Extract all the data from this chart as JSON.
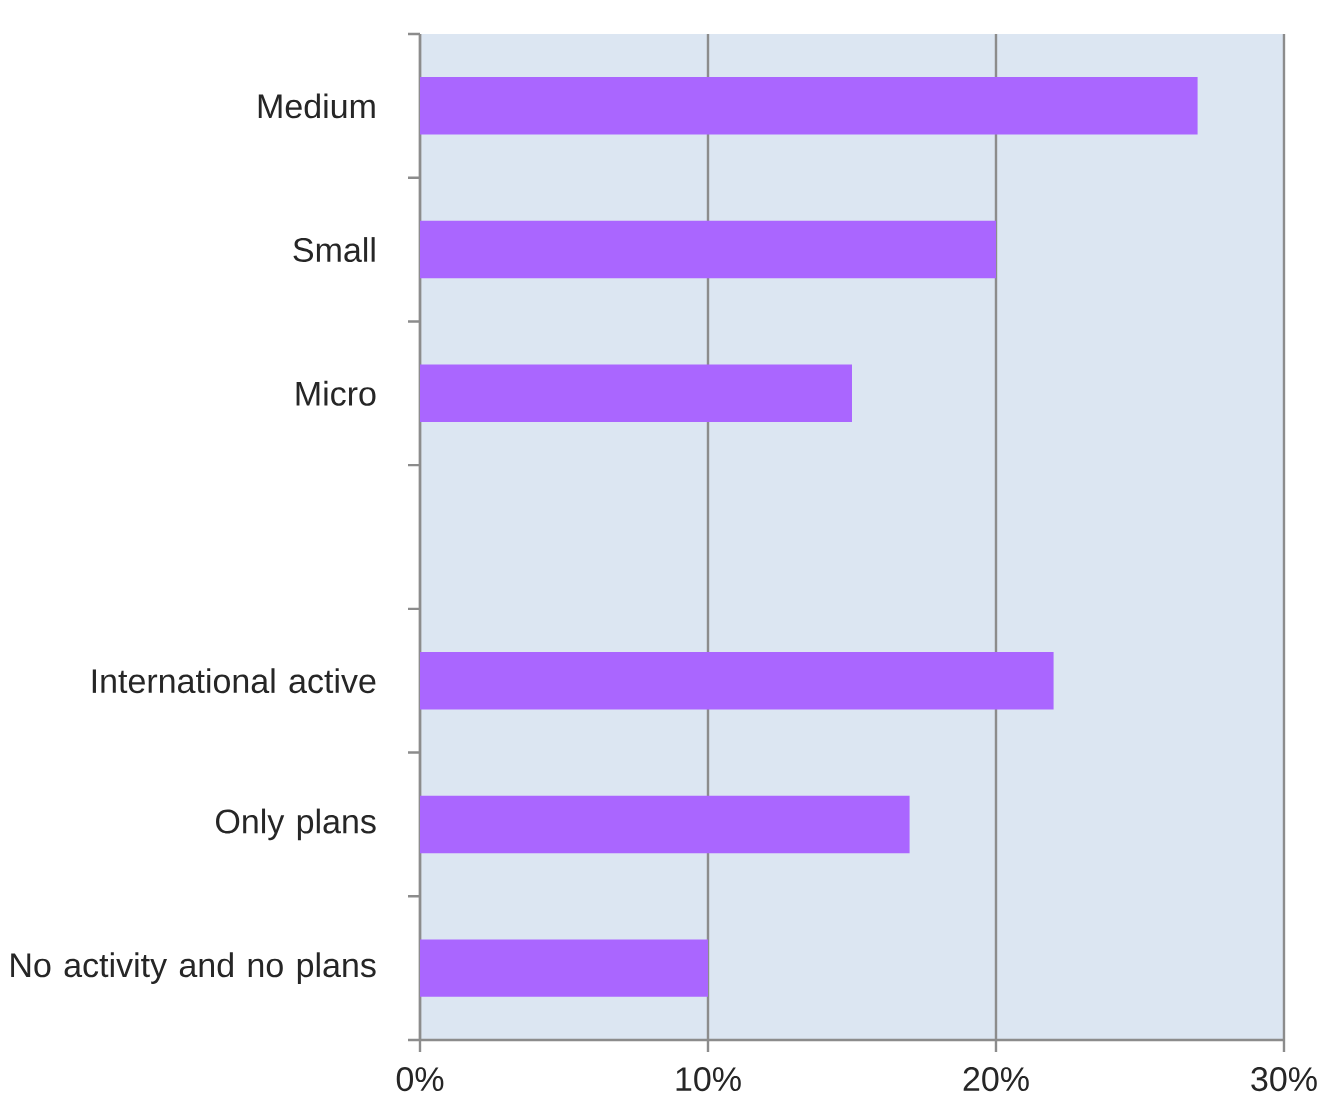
{
  "chart_data": {
    "type": "bar",
    "orientation": "horizontal",
    "categories": [
      "Medium",
      "Small",
      "Micro",
      null,
      "International active",
      "Only plans",
      "No activity and no plans"
    ],
    "values": [
      27,
      20,
      15,
      null,
      22,
      17,
      10
    ],
    "color": "#aa66ff",
    "xlim": [
      0,
      30
    ],
    "xticks": [
      {
        "value": 0,
        "label": "0%"
      },
      {
        "value": 10,
        "label": "10%"
      },
      {
        "value": 20,
        "label": "20%"
      },
      {
        "value": 30,
        "label": "30%"
      }
    ],
    "grid": "x"
  }
}
